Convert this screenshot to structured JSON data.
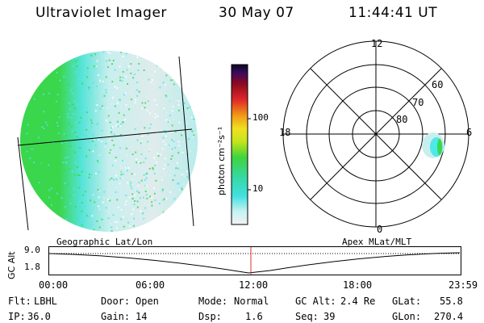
{
  "header": {
    "instrument": "Ultraviolet Imager",
    "date": "30 May 07",
    "time": "11:44:41 UT"
  },
  "colorbar": {
    "label": "photon cm⁻²s⁻¹",
    "ticks": [
      "100",
      "10"
    ]
  },
  "polar_plot": {
    "mlt_labels": {
      "top": "12",
      "left": "18",
      "right": "6",
      "bottom": "0"
    },
    "lat_labels": [
      "60",
      "70",
      "80"
    ]
  },
  "timeline": {
    "ylabel": "GC Alt",
    "y_ticks": [
      "9.0",
      "1.8"
    ],
    "left_title": "Geographic Lat/Lon",
    "right_title": "Apex MLat/MLT",
    "x_ticks": [
      "00:00",
      "06:00",
      "12:00",
      "18:00",
      "23:59"
    ],
    "marker_color": "#d83030"
  },
  "status": {
    "filter_label": "Flt:",
    "filter_value": "LBHL",
    "ip_label": "IP:",
    "ip_value": "36.0",
    "door_label": "Door:",
    "door_value": "Open",
    "gain_label": "Gain:",
    "gain_value": "14",
    "mode_label": "Mode:",
    "mode_value": "Normal",
    "dsp_label": "Dsp:",
    "dsp_value": "1.6",
    "gcalt_label": "GC Alt:",
    "gcalt_value": "2.4 Re",
    "seq_label": "Seq:",
    "seq_value": "39",
    "glat_label": "GLat:",
    "glat_value": "55.8",
    "glon_label": "GLon:",
    "glon_value": "270.4"
  },
  "colors": {
    "cyan": "#4fe8e8",
    "green": "#39d84a",
    "pale": "#e6eeee"
  }
}
